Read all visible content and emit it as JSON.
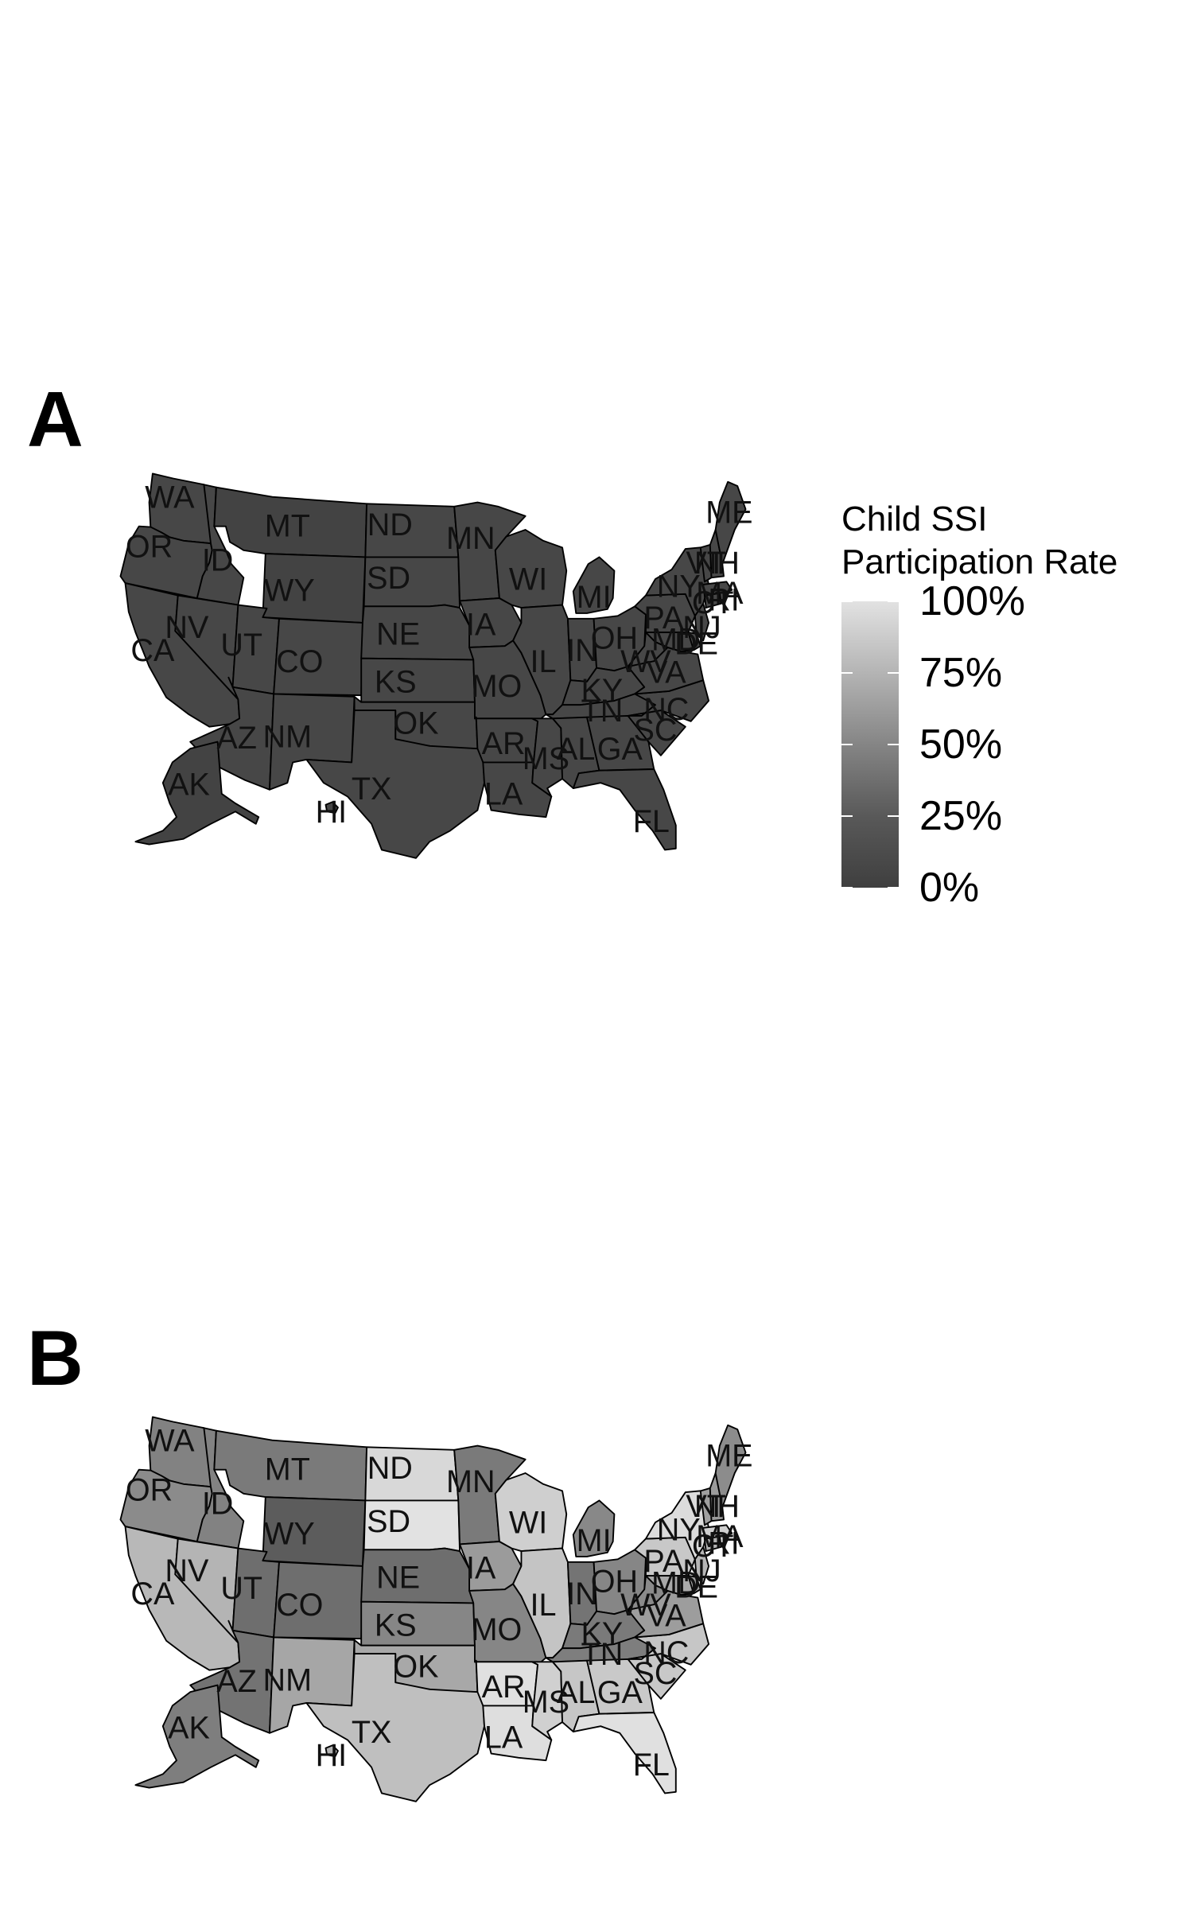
{
  "panels": [
    {
      "letter": "A",
      "fill": "#474747",
      "fill_alt": "#434343"
    },
    {
      "letter": "B",
      "fill": "#7d7d7d"
    }
  ],
  "states": [
    {
      "abbr": "WA"
    },
    {
      "abbr": "OR"
    },
    {
      "abbr": "CA"
    },
    {
      "abbr": "ID"
    },
    {
      "abbr": "NV"
    },
    {
      "abbr": "MT"
    },
    {
      "abbr": "WY"
    },
    {
      "abbr": "UT"
    },
    {
      "abbr": "AZ"
    },
    {
      "abbr": "CO"
    },
    {
      "abbr": "NM"
    },
    {
      "abbr": "ND"
    },
    {
      "abbr": "SD"
    },
    {
      "abbr": "NE"
    },
    {
      "abbr": "KS"
    },
    {
      "abbr": "OK"
    },
    {
      "abbr": "TX"
    },
    {
      "abbr": "MN"
    },
    {
      "abbr": "IA"
    },
    {
      "abbr": "MO"
    },
    {
      "abbr": "AR"
    },
    {
      "abbr": "LA"
    },
    {
      "abbr": "WI"
    },
    {
      "abbr": "IL"
    },
    {
      "abbr": "MI"
    },
    {
      "abbr": "IN"
    },
    {
      "abbr": "OH"
    },
    {
      "abbr": "KY"
    },
    {
      "abbr": "TN"
    },
    {
      "abbr": "MS"
    },
    {
      "abbr": "AL"
    },
    {
      "abbr": "GA"
    },
    {
      "abbr": "FL"
    },
    {
      "abbr": "SC"
    },
    {
      "abbr": "NC"
    },
    {
      "abbr": "VA"
    },
    {
      "abbr": "WV"
    },
    {
      "abbr": "PA"
    },
    {
      "abbr": "NY"
    },
    {
      "abbr": "NJ"
    },
    {
      "abbr": "MD"
    },
    {
      "abbr": "DE"
    },
    {
      "abbr": "CT"
    },
    {
      "abbr": "RI"
    },
    {
      "abbr": "MA"
    },
    {
      "abbr": "VT"
    },
    {
      "abbr": "NH"
    },
    {
      "abbr": "ME"
    },
    {
      "abbr": "AK"
    },
    {
      "abbr": "HI"
    }
  ],
  "panel_b_fills": {
    "WA": "#828282",
    "OR": "#8b8b8b",
    "CA": "#b8b8b8",
    "NV": "#b4b4b4",
    "ID": "#828282",
    "MT": "#7a7a7a",
    "WY": "#5c5c5c",
    "UT": "#6e6e6e",
    "AZ": "#737373",
    "CO": "#6e6e6e",
    "NM": "#a6a6a6",
    "ND": "#d8d8d8",
    "SD": "#e2e2e2",
    "NE": "#6e6e6e",
    "KS": "#868686",
    "OK": "#a8a8a8",
    "TX": "#bfbfbf",
    "MN": "#7a7a7a",
    "IA": "#9b9b9b",
    "MO": "#868686",
    "AR": "#e0e0e0",
    "LA": "#dedede",
    "WI": "#cfcfcf",
    "IL": "#c4c4c4",
    "MI": "#888888",
    "IN": "#747474",
    "OH": "#868686",
    "KY": "#7a7a7a",
    "TN": "#7e7e7e",
    "MS": "#d0d0d0",
    "AL": "#c6c6c6",
    "GA": "#c9c9c9",
    "FL": "#e0e0e0",
    "SC": "#c8c8c8",
    "NC": "#c6c6c6",
    "VA": "#9d9d9d",
    "WV": "#8a8a8a",
    "PA": "#c8c8c8",
    "NY": "#dcdcdc",
    "NJ": "#b6b6b6",
    "MD": "#a9a9a9",
    "DE": "#a1a1a1",
    "CT": "#b2b2b2",
    "RI": "#d4d4d4",
    "MA": "#cfcfcf",
    "VT": "#a0a0a0",
    "NH": "#9a9a9a",
    "ME": "#8c8c8c",
    "AK": "#7e7e7e",
    "HI": "#b4b4b4"
  },
  "legend": {
    "title_line1": "Child SSI",
    "title_line2": "Participation Rate",
    "ticks": [
      {
        "label": "100%",
        "value": 1.0
      },
      {
        "label": "75%",
        "value": 0.75
      },
      {
        "label": "50%",
        "value": 0.5
      },
      {
        "label": "25%",
        "value": 0.25
      },
      {
        "label": "0%",
        "value": 0.0
      }
    ],
    "color_low": "#3f3f3f",
    "color_high": "#e2e2e2"
  }
}
